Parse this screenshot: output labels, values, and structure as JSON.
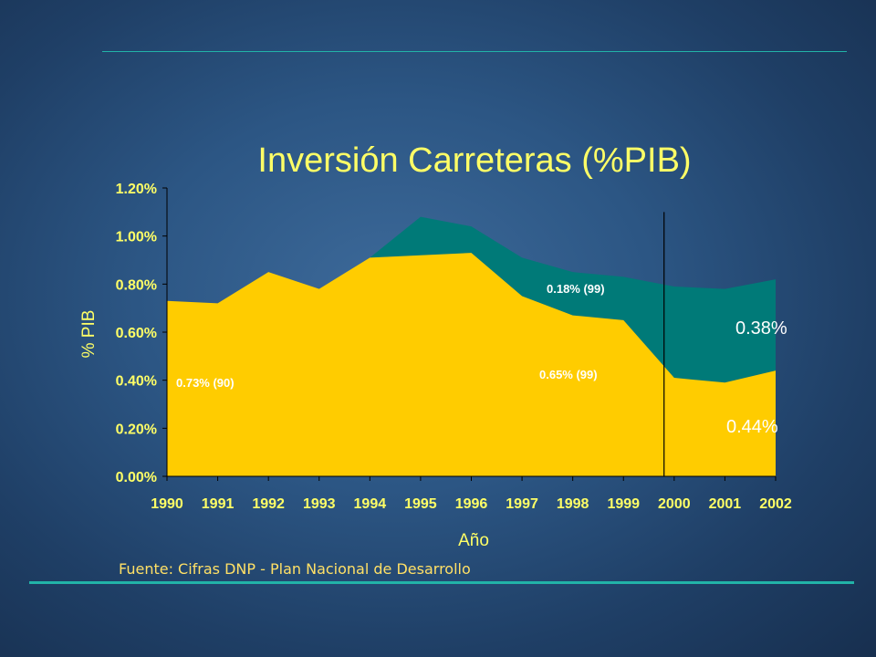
{
  "slide": {
    "source": "Fuente: Cifras DNP - Plan Nacional de Desarrollo"
  },
  "colors": {
    "base": "#ffcc00",
    "increment": "#007a78",
    "text": "#ffff66",
    "rule": "#22b3a8"
  },
  "chart_data": {
    "type": "area",
    "title": "Inversión Carreteras (%PIB)",
    "xlabel": "Año",
    "ylabel": "% PIB",
    "x": [
      "1990",
      "1991",
      "1992",
      "1993",
      "1994",
      "1995",
      "1996",
      "1997",
      "1998",
      "1999",
      "2000",
      "2001",
      "2002"
    ],
    "ylim": [
      0,
      1.2
    ],
    "yticks": [
      "0.00%",
      "0.20%",
      "0.40%",
      "0.60%",
      "0.80%",
      "1.00%",
      "1.20%"
    ],
    "series": [
      {
        "values": [
          0.73,
          0.72,
          0.85,
          0.78,
          0.91,
          0.92,
          0.93,
          0.75,
          0.67,
          0.65,
          0.41,
          0.39,
          0.44
        ]
      },
      {
        "values": [
          0.73,
          0.72,
          0.85,
          0.78,
          0.91,
          1.08,
          1.04,
          0.91,
          0.85,
          0.83,
          0.79,
          0.78,
          0.82
        ]
      }
    ],
    "divider_after": "1999",
    "annotations": {
      "a1990": "0.73% (90)",
      "a1999base": "0.65% (99)",
      "a1999inc": "0.18% (99)",
      "a2002inc": "0.38%",
      "a2002base": "0.44%"
    },
    "grid": false
  }
}
